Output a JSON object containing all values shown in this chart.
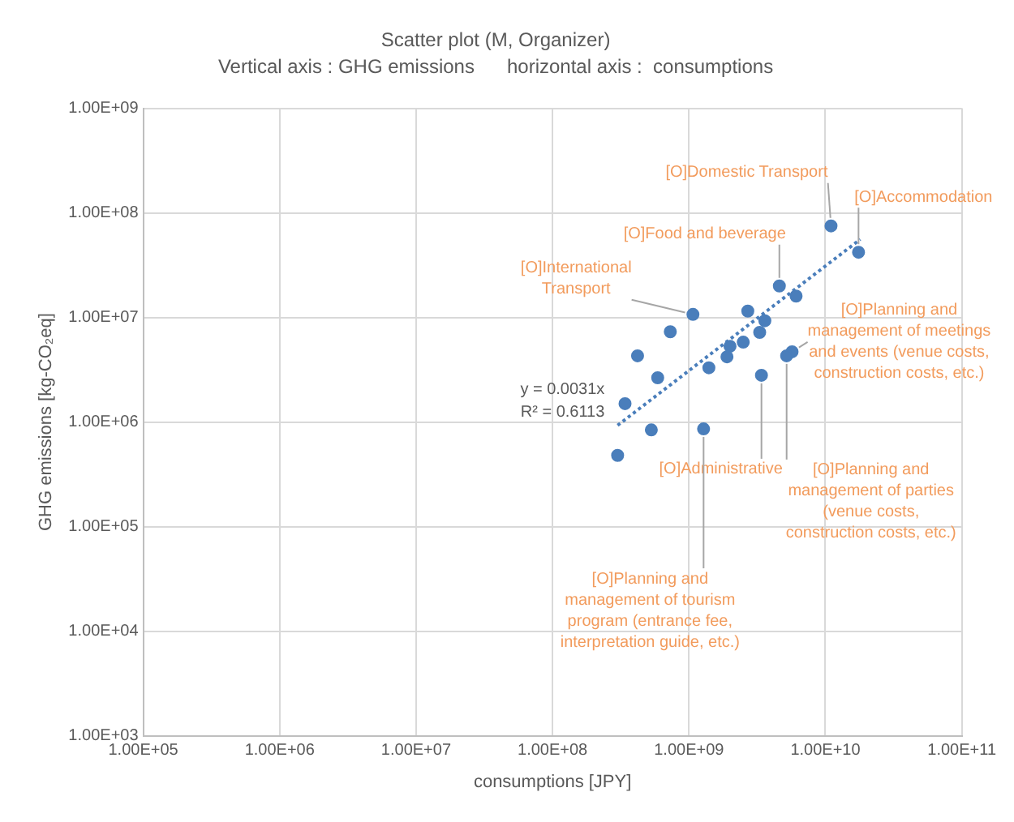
{
  "chart_data": {
    "type": "scatter",
    "title": "Scatter plot (M, Organizer)",
    "subtitle": "Vertical axis : GHG emissions      horizontal axis :  consumptions",
    "xlabel": "consumptions [JPY]",
    "ylabel": "GHG emissions [kg-CO₂eq]",
    "log": "xy",
    "grid": true,
    "legend": false,
    "marker": "circle",
    "xlim": [
      100000,
      100000000000
    ],
    "ylim": [
      1000,
      1000000000
    ],
    "xticks": [
      {
        "value": 100000,
        "label": "1.00E+05"
      },
      {
        "value": 1000000,
        "label": "1.00E+06"
      },
      {
        "value": 10000000,
        "label": "1.00E+07"
      },
      {
        "value": 100000000,
        "label": "1.00E+08"
      },
      {
        "value": 1000000000,
        "label": "1.00E+09"
      },
      {
        "value": 10000000000,
        "label": "1.00E+10"
      },
      {
        "value": 100000000000,
        "label": "1.00E+11"
      }
    ],
    "yticks": [
      {
        "value": 1000,
        "label": "1.00E+03"
      },
      {
        "value": 10000,
        "label": "1.00E+04"
      },
      {
        "value": 100000,
        "label": "1.00E+05"
      },
      {
        "value": 1000000,
        "label": "1.00E+06"
      },
      {
        "value": 10000000,
        "label": "1.00E+07"
      },
      {
        "value": 100000000,
        "label": "1.00E+08"
      },
      {
        "value": 1000000000,
        "label": "1.00E+09"
      }
    ],
    "series": [
      {
        "color": "#4a7ebb",
        "x": [
          11000000000,
          17500000000,
          4600000000,
          6100000000,
          1070000000,
          2700000000,
          3600000000,
          730000000,
          3300000000,
          2500000000,
          2000000000,
          420000000,
          1900000000,
          5700000000,
          5200000000,
          1400000000,
          590000000,
          3400000000,
          340000000,
          530000000,
          1280000000,
          300000000
        ],
        "values": [
          75000000,
          42000000,
          20000000,
          16000000,
          10700000,
          11500000,
          9300000,
          7300000,
          7200000,
          5800000,
          5300000,
          4300000,
          4200000,
          4700000,
          4300000,
          3300000,
          2650000,
          2800000,
          1500000,
          840000,
          860000,
          480000
        ]
      },
      {
        "type": "line",
        "color": "#4a7ebb",
        "line_style": "dotted",
        "marker": "none",
        "x": [
          300000000,
          18000000000
        ],
        "values": [
          930000,
          55800000
        ]
      }
    ],
    "annotations": [
      {
        "text": "[O]Domestic Transport",
        "x": 11000000000,
        "y": 75000000
      },
      {
        "text": "[O]Accommodation",
        "x": 17500000000,
        "y": 42000000
      },
      {
        "text": "[O]Food and beverage",
        "x": 4600000000,
        "y": 20000000
      },
      {
        "text": "[O]International Transport",
        "x": 1070000000,
        "y": 10700000
      },
      {
        "text": "[O]Planning and management of meetings and events (venue costs, construction costs, etc.)",
        "x": 5700000000,
        "y": 4700000
      },
      {
        "text": "[O]Planning and management of parties (venue costs, construction costs, etc.)",
        "x": 5200000000,
        "y": 4300000
      },
      {
        "text": "[O]Administrative",
        "x": 3400000000,
        "y": 2800000
      },
      {
        "text": "[O]Planning and management of tourism program (entrance fee, interpretation guide, etc.)",
        "x": 1280000000,
        "y": 860000
      },
      "y = 0.0031x",
      "R² = 0.6113"
    ]
  }
}
